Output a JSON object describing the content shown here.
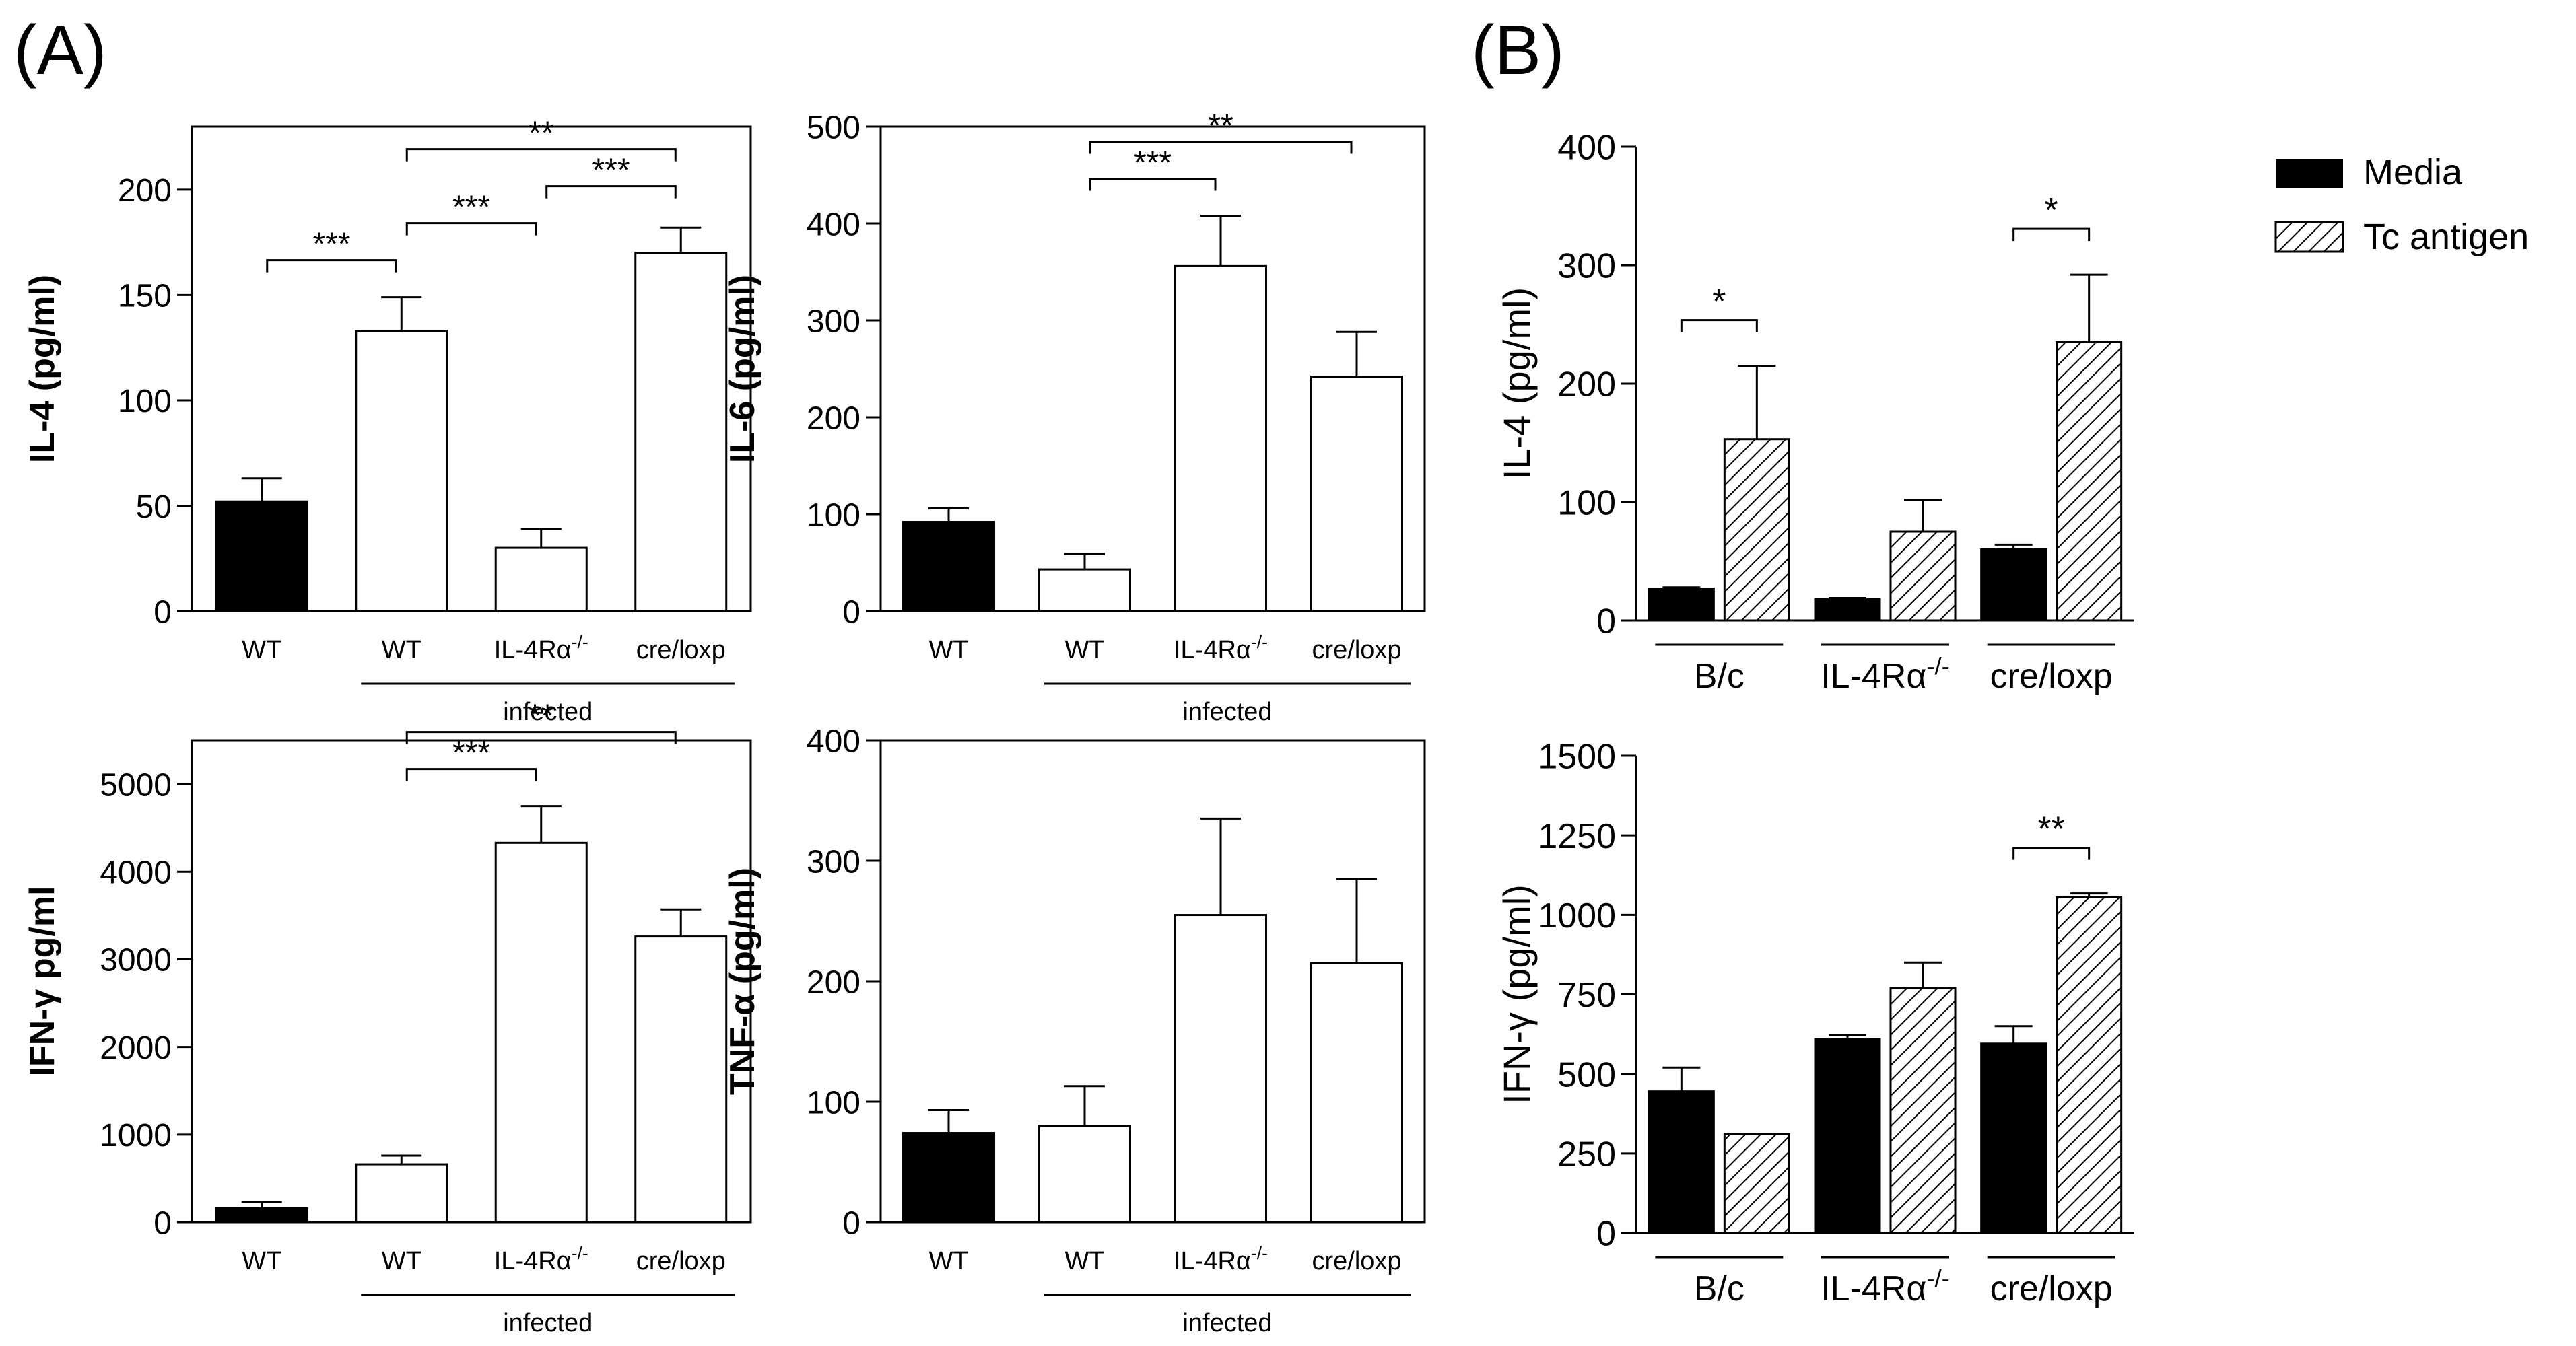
{
  "panel_labels": {
    "a": "(A)",
    "b": "(B)"
  },
  "colors": {
    "media": "#000000",
    "bar_open": "#ffffff",
    "axis": "#000000"
  },
  "legend": {
    "media": "Media",
    "tc": "Tc antigen"
  },
  "chart_data": [
    {
      "id": "il4_a",
      "type": "bar",
      "categories": [
        "WT",
        "WT",
        "IL-4Rα",
        "cre/loxp"
      ],
      "values": [
        52,
        133,
        30,
        170
      ],
      "errors": [
        11,
        16,
        9,
        12
      ],
      "fills": [
        "media",
        "open",
        "open",
        "open"
      ],
      "ylabel": "IL-4 (pg/ml)",
      "ylim": [
        0,
        230
      ],
      "yticks": [
        0,
        50,
        100,
        150,
        200
      ],
      "group_label": "infected",
      "significance": [
        {
          "from": 0,
          "to": 1,
          "label": "***"
        },
        {
          "from": 1,
          "to": 2,
          "label": "***"
        },
        {
          "from": 2,
          "to": 3,
          "label": "***"
        },
        {
          "from": 1,
          "to": 3,
          "label": "**"
        }
      ]
    },
    {
      "id": "il6_a",
      "type": "bar",
      "categories": [
        "WT",
        "WT",
        "IL-4Rα",
        "cre/loxp"
      ],
      "values": [
        92,
        43,
        356,
        242
      ],
      "errors": [
        14,
        16,
        52,
        46
      ],
      "fills": [
        "media",
        "open",
        "open",
        "open"
      ],
      "ylabel": "IL-6 (pg/ml)",
      "ylim": [
        0,
        500
      ],
      "yticks": [
        0,
        100,
        200,
        300,
        400,
        500
      ],
      "group_label": "infected",
      "significance": [
        {
          "from": 1,
          "to": 2,
          "label": "***"
        },
        {
          "from": 1,
          "to": 3,
          "label": "**"
        }
      ]
    },
    {
      "id": "ifng_a",
      "type": "bar",
      "categories": [
        "WT",
        "WT",
        "IL-4Rα",
        "cre/loxp"
      ],
      "values": [
        160,
        660,
        4330,
        3260
      ],
      "errors": [
        70,
        100,
        420,
        310
      ],
      "fills": [
        "media",
        "open",
        "open",
        "open"
      ],
      "ylabel": "IFN-γ pg/ml",
      "ylim": [
        0,
        5500
      ],
      "yticks": [
        0,
        1000,
        2000,
        3000,
        4000,
        5000
      ],
      "group_label": "infected",
      "significance": [
        {
          "from": 1,
          "to": 2,
          "label": "***"
        },
        {
          "from": 1,
          "to": 3,
          "label": "**"
        }
      ]
    },
    {
      "id": "tnfa_a",
      "type": "bar",
      "categories": [
        "WT",
        "WT",
        "IL-4Rα",
        "cre/loxp"
      ],
      "values": [
        74,
        80,
        255,
        215
      ],
      "errors": [
        19,
        33,
        80,
        70
      ],
      "fills": [
        "media",
        "open",
        "open",
        "open"
      ],
      "ylabel": "TNF-α (pg/ml)",
      "ylim": [
        0,
        400
      ],
      "yticks": [
        0,
        100,
        200,
        300,
        400
      ],
      "group_label": "infected",
      "significance": []
    },
    {
      "id": "il4_b",
      "type": "bar",
      "groups": [
        "B/c",
        "IL-4Rα",
        "cre/loxp"
      ],
      "series": [
        {
          "name": "Media",
          "values": [
            27,
            18,
            60
          ],
          "errors": [
            1,
            1,
            4
          ]
        },
        {
          "name": "Tc antigen",
          "values": [
            153,
            75,
            235
          ],
          "errors": [
            62,
            27,
            57
          ]
        }
      ],
      "ylabel": "IL-4 (pg/ml)",
      "ylim": [
        0,
        400
      ],
      "yticks": [
        0,
        100,
        200,
        300,
        400
      ],
      "significance": [
        {
          "group": 0,
          "label": "*"
        },
        {
          "group": 2,
          "label": "*"
        }
      ]
    },
    {
      "id": "ifng_b",
      "type": "bar",
      "groups": [
        "B/c",
        "IL-4Rα",
        "cre/loxp"
      ],
      "series": [
        {
          "name": "Media",
          "values": [
            445,
            610,
            595
          ],
          "errors": [
            75,
            12,
            55
          ]
        },
        {
          "name": "Tc antigen",
          "values": [
            310,
            770,
            1055
          ],
          "errors": [
            0,
            80,
            12
          ]
        }
      ],
      "ylabel": "IFN-γ (pg/ml)",
      "ylim": [
        0,
        1500
      ],
      "yticks": [
        0,
        250,
        500,
        750,
        1000,
        1250,
        1500
      ],
      "significance": [
        {
          "group": 2,
          "label": "**"
        }
      ]
    }
  ]
}
